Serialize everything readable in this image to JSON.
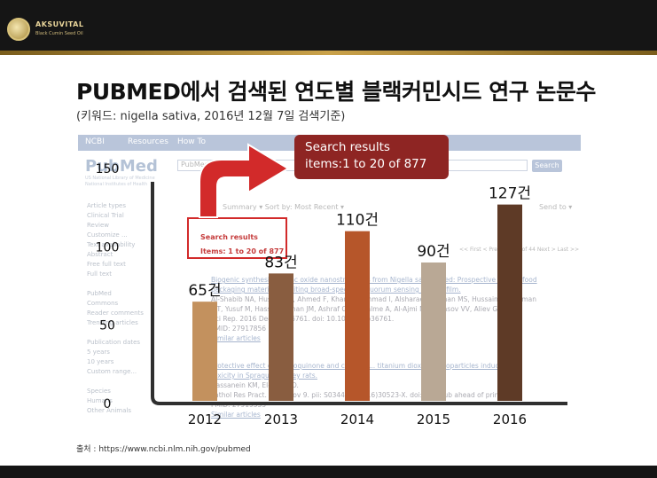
{
  "brand": {
    "name": "AKSUVITAL",
    "sub": "Black Cumin Seed Oil"
  },
  "page_title": "PUBMED에서 검색된 연도별 블랙커민시드 연구 논문수",
  "page_subtitle": "(키워드: nigella sativa, 2016년 12월 7일 검색기준)",
  "source": "출처 : https://www.ncbi.nlm.nih.gov/pubmed",
  "annotation": {
    "line1": "Search results",
    "line2": "items:1 to 20 of 877",
    "highlight_line1": "Search results",
    "highlight_line2": "Items: 1 to 20 of 877"
  },
  "colors": {
    "axis": "#2f2f2f",
    "annotation_red": "#d22a2a",
    "annotation_box": "#8e2523"
  },
  "background_page": {
    "ncbi": "NCBI",
    "resources": "Resources",
    "howto": "How To",
    "pubmed": "PubMed",
    "search_value": "PubMed",
    "search_button": "Search",
    "note": "US National Library of Medicine\nNational Institutes of Health",
    "filters": [
      "Article types",
      "Clinical Trial",
      "Review",
      "Customize ...",
      "Text availability",
      "Abstract",
      "Free full text",
      "Full text",
      "",
      "PubMed",
      "Commons",
      "Reader comments",
      "Trending articles",
      "",
      "Publication dates",
      "5 years",
      "10 years",
      "Custom range...",
      "",
      "Species",
      "Humans",
      "Other Animals"
    ],
    "display": "Summary ▾ Sort by: Most Recent ▾",
    "send_to": "Send to ▾",
    "pager": "<< First  < Prev  Page 1 of 44  Next >  Last >>",
    "articles": [
      {
        "title": "Biogenic synthesis of Zinc oxide nanostructures from Nigella sativa seed: Prospective role as food",
        "title2": "packaging material inhibiting broad-spectrum quorum sensing and biofilm.",
        "authors": "Al-Shabib NA, Husain FM, Ahmed F, Khan RA, Ahmad I, Alsharaeh E, Khan MS, Hussain A, Rehman",
        "authors2": "MT, Yusuf M, Hassan I, Khan JM, Ashraf GM, Alsalme A, Al-Ajmi MF, Tarasov VV, Aliev G.",
        "journal": "Sci Rep. 2016 Dec 5;6:36761. doi: 10.1038/srep36761.",
        "pmid": "PMID: 27917856",
        "similar": "Similar articles"
      },
      {
        "title": "Protective effect of thymoquinone and cisplatin... titanium dioxide nanoparticles induced",
        "title2": "toxicity in Sprague-Dawley rats.",
        "authors": "Hassanein KM, El-Amir YO.",
        "authors2": "",
        "journal": "Pathol Res Pract. 2016 Nov 9. pii: S0344-0338(16)30523-X. doi: ... [Epub ahead of print]",
        "pmid": "PMID: 27919553",
        "similar": "Similar articles"
      }
    ]
  },
  "chart_data": {
    "type": "bar",
    "title": "",
    "xlabel": "",
    "ylabel": "",
    "categories": [
      "2012",
      "2013",
      "2014",
      "2015",
      "2016"
    ],
    "values": [
      65,
      83,
      110,
      90,
      127
    ],
    "data_labels": [
      "65건",
      "83건",
      "110건",
      "90건",
      "127건"
    ],
    "bar_colors": [
      "#c3915e",
      "#895d40",
      "#b6562a",
      "#b9a895",
      "#5e3a26"
    ],
    "ylim": [
      0,
      150
    ],
    "yticks": [
      0,
      50,
      100,
      150
    ],
    "grid": false,
    "legend": "none"
  }
}
